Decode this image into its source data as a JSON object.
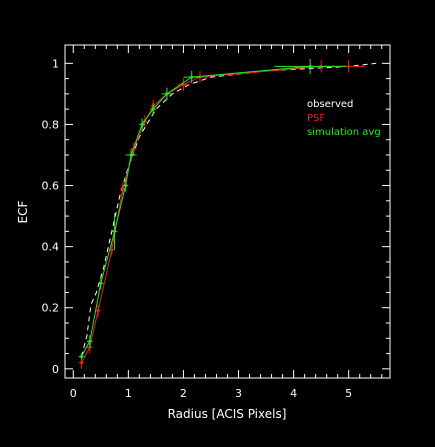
{
  "chart_data": {
    "type": "line",
    "xlabel": "Radius [ACIS Pixels]",
    "ylabel": "ECF",
    "xlim": [
      -0.15,
      5.75
    ],
    "ylim": [
      -0.03,
      1.06
    ],
    "xticks": [
      0,
      1,
      2,
      3,
      4,
      5
    ],
    "yticks": [
      0,
      0.2,
      0.4,
      0.6,
      0.8,
      1
    ],
    "xtick_labels": [
      "0",
      "1",
      "2",
      "3",
      "4",
      "5"
    ],
    "ytick_labels": [
      "0",
      "0.2",
      "0.4",
      "0.6",
      "0.8",
      "1"
    ],
    "legend_position": "upper-right inside plot",
    "legend": [
      {
        "label": "observed",
        "color": "#ffffff"
      },
      {
        "label": "PSF",
        "color": "#e8201a"
      },
      {
        "label": "simulation avg",
        "color": "#22e822"
      }
    ],
    "series": [
      {
        "name": "observed",
        "style": "dashed",
        "color": "#ffffff",
        "x": [
          0.15,
          0.25,
          0.32,
          0.42,
          0.55,
          0.7,
          0.85,
          1.0,
          1.2,
          1.5,
          1.8,
          2.1,
          2.5,
          3.0,
          3.5,
          4.0,
          4.5,
          5.0,
          5.5
        ],
        "y": [
          0.04,
          0.11,
          0.21,
          0.25,
          0.33,
          0.45,
          0.57,
          0.66,
          0.76,
          0.85,
          0.9,
          0.93,
          0.955,
          0.965,
          0.975,
          0.98,
          0.985,
          0.99,
          1.0
        ]
      },
      {
        "name": "PSF",
        "style": "solid-with-errorbars",
        "color": "#e8201a",
        "x": [
          0.15,
          0.3,
          0.45,
          0.7,
          0.9,
          1.1,
          1.3,
          1.45,
          1.7,
          2.0,
          2.3,
          4.5,
          5.0
        ],
        "y": [
          0.02,
          0.07,
          0.19,
          0.39,
          0.59,
          0.72,
          0.81,
          0.86,
          0.9,
          0.93,
          0.955,
          0.99,
          0.99
        ],
        "xerr": [
          0.05,
          0.05,
          0.05,
          0.05,
          0.05,
          0.05,
          0.05,
          0.05,
          0.05,
          0.1,
          0.15,
          0.3,
          0.3
        ],
        "yerr": [
          0.02,
          0.02,
          0.02,
          0.02,
          0.02,
          0.02,
          0.02,
          0.02,
          0.02,
          0.02,
          0.02,
          0.02,
          0.02
        ]
      },
      {
        "name": "simulation avg",
        "style": "solid-with-errorbars",
        "color": "#22e822",
        "x": [
          0.15,
          0.3,
          0.5,
          0.75,
          0.95,
          1.05,
          1.25,
          1.45,
          1.7,
          2.15,
          4.3
        ],
        "y": [
          0.04,
          0.09,
          0.28,
          0.45,
          0.6,
          0.7,
          0.8,
          0.85,
          0.9,
          0.955,
          0.99
        ],
        "xerr": [
          0.05,
          0.05,
          0.05,
          0.05,
          0.05,
          0.1,
          0.05,
          0.05,
          0.1,
          0.15,
          0.65
        ],
        "yerr": [
          0.01,
          0.02,
          0.02,
          0.06,
          0.02,
          0.02,
          0.02,
          0.02,
          0.02,
          0.02,
          0.025
        ]
      }
    ]
  }
}
